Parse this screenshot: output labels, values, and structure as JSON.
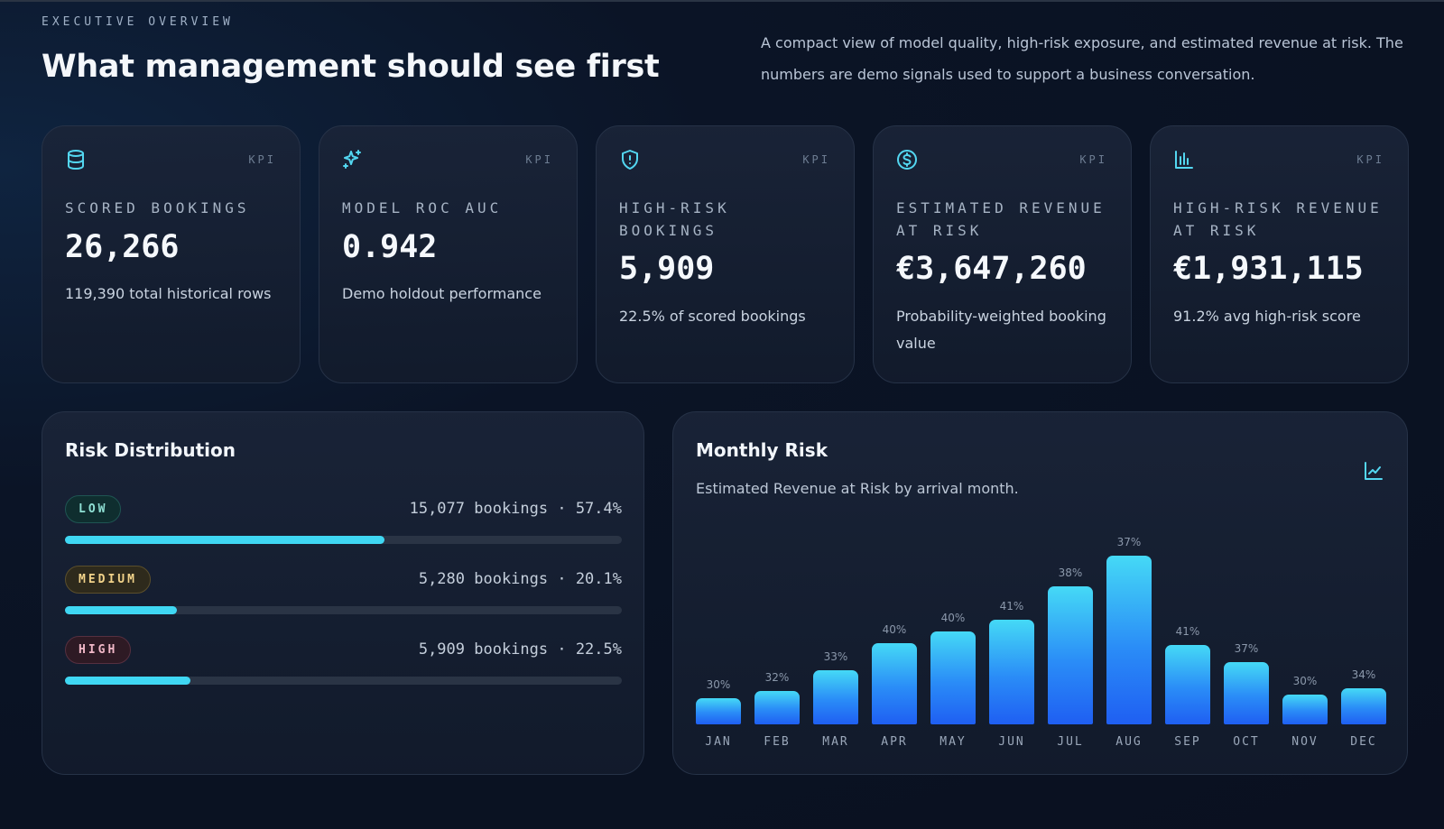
{
  "header": {
    "eyebrow": "EXECUTIVE OVERVIEW",
    "title": "What management should see first",
    "description": "A compact view of model quality, high-risk exposure, and estimated revenue at risk. The numbers are demo signals used to support a business conversation."
  },
  "colors": {
    "accent": "#3fd7f3",
    "bar_top": "#45d9f6",
    "bar_bottom": "#1f5ff2",
    "background": "#0b1426"
  },
  "kpis": [
    {
      "icon": "database-icon",
      "tag": "KPI",
      "label": "SCORED BOOKINGS",
      "value": "26,266",
      "sub": "119,390 total historical rows"
    },
    {
      "icon": "sparkles-icon",
      "tag": "KPI",
      "label": "MODEL ROC AUC",
      "value": "0.942",
      "sub": "Demo holdout performance"
    },
    {
      "icon": "shield-alert-icon",
      "tag": "KPI",
      "label": "HIGH-RISK BOOKINGS",
      "value": "5,909",
      "sub": "22.5% of scored bookings"
    },
    {
      "icon": "dollar-circle-icon",
      "tag": "KPI",
      "label": "ESTIMATED REVENUE AT RISK",
      "value": "€3,647,260",
      "sub": "Probability-weighted booking value"
    },
    {
      "icon": "bar-chart-icon",
      "tag": "KPI",
      "label": "HIGH-RISK REVENUE AT RISK",
      "value": "€1,931,115",
      "sub": "91.2% avg high-risk score"
    }
  ],
  "risk_distribution": {
    "title": "Risk Distribution",
    "rows": [
      {
        "label": "LOW",
        "stat": "15,077 bookings · 57.4%",
        "fraction": 0.574
      },
      {
        "label": "MEDIUM",
        "stat": "5,280 bookings · 20.1%",
        "fraction": 0.201
      },
      {
        "label": "HIGH",
        "stat": "5,909 bookings · 22.5%",
        "fraction": 0.225
      }
    ]
  },
  "monthly_risk": {
    "title": "Monthly Risk",
    "subtitle": "Estimated Revenue at Risk by arrival month.",
    "icon": "line-chart-icon"
  },
  "chart_data": {
    "type": "bar",
    "title": "Monthly Risk",
    "subtitle": "Estimated Revenue at Risk by arrival month.",
    "categories": [
      "JAN",
      "FEB",
      "MAR",
      "APR",
      "MAY",
      "JUN",
      "JUL",
      "AUG",
      "SEP",
      "OCT",
      "NOV",
      "DEC"
    ],
    "labels": [
      "30%",
      "32%",
      "33%",
      "40%",
      "40%",
      "41%",
      "38%",
      "37%",
      "41%",
      "37%",
      "30%",
      "34%"
    ],
    "values": [
      0.155,
      0.2,
      0.32,
      0.48,
      0.55,
      0.62,
      0.82,
      1.0,
      0.47,
      0.37,
      0.175,
      0.215
    ],
    "xlabel": "",
    "ylabel": "",
    "grid": false
  }
}
